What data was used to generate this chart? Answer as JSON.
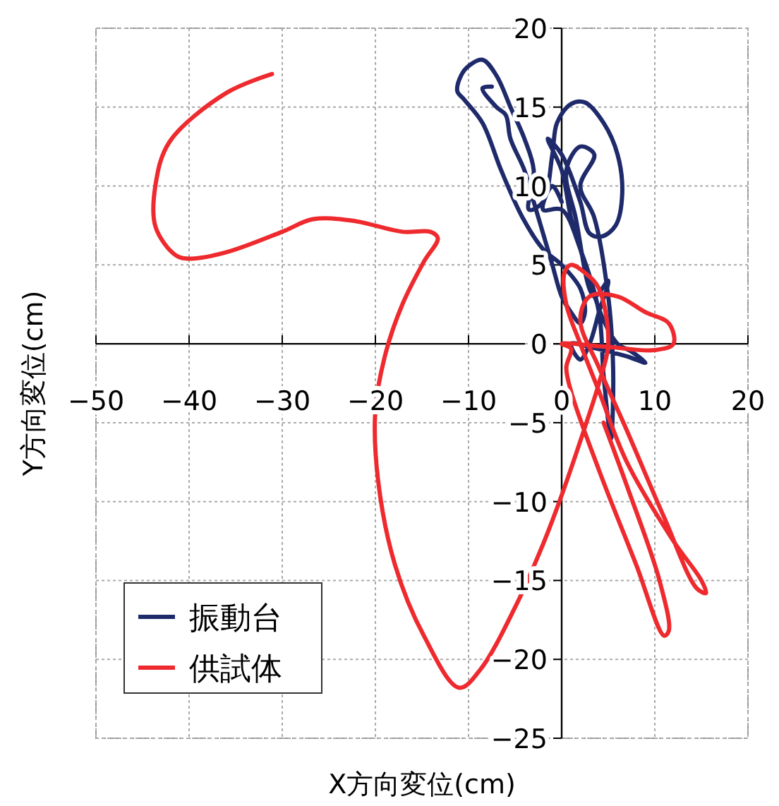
{
  "chart_data": {
    "type": "line",
    "xlabel": "X方向変位(cm)",
    "ylabel": "Y方向変位(cm)",
    "xlim": [
      -50,
      20
    ],
    "xticks": [
      -50,
      -40,
      -30,
      -20,
      -10,
      0,
      10,
      20
    ],
    "ylim": [
      -25,
      20
    ],
    "yticks": [
      -25,
      -20,
      -15,
      -10,
      -5,
      0,
      5,
      10,
      15,
      20
    ],
    "grid": true,
    "legend": "bottom left",
    "marker": "none",
    "line_style": "solid",
    "series": [
      {
        "name": "振動台",
        "color": "#1f2a6b",
        "x": [
          -7.5,
          -8.5,
          -7,
          -6,
          -5.5,
          -4,
          -3,
          -2,
          -1,
          0,
          1,
          2,
          2.5,
          2,
          0,
          -2,
          -4.2,
          -6.5,
          -8.5,
          -10.5,
          -11.2,
          -10.8,
          -10,
          -8.5,
          -7,
          -5.5,
          -4,
          -3,
          -3.5,
          -2,
          -1,
          -0.5,
          1,
          2.5,
          4.5,
          6,
          6.5,
          5.8,
          4.3,
          3,
          2,
          0,
          -1.5,
          0,
          1,
          2,
          3,
          4.5,
          6,
          7.5,
          9,
          7,
          3,
          1,
          2,
          3,
          4,
          5,
          3.5,
          1.5,
          0.5,
          2,
          3.5,
          2,
          3.5,
          5,
          5.5,
          5.5,
          5.3,
          4.5,
          4,
          2,
          0,
          -2,
          -1,
          0
        ],
        "values": [
          16.3,
          16.2,
          15,
          14.5,
          13,
          11,
          9,
          7,
          5,
          3,
          2,
          1.3,
          2,
          3.5,
          5,
          6,
          8,
          11,
          14,
          15.5,
          16,
          17,
          17.6,
          18,
          17,
          15,
          13,
          11,
          8.5,
          9,
          12,
          14,
          15.2,
          15.3,
          14,
          12,
          9.5,
          7.5,
          6.8,
          7,
          9,
          12,
          13,
          11,
          8,
          6,
          4,
          1.5,
          0,
          -0.5,
          -1.2,
          -0.8,
          -0.2,
          0,
          -1,
          0,
          2,
          4,
          3,
          8,
          11,
          12.5,
          12,
          10,
          8,
          3,
          -1,
          -4,
          -6,
          -2,
          2,
          6,
          8.5,
          8.5,
          10,
          9
        ]
      },
      {
        "name": "供試体",
        "color": "#ee2a2e",
        "x": [
          -31.1,
          -36,
          -42.1,
          -43.6,
          -43.6,
          -41.4,
          -39.8,
          -36,
          -30,
          -26.7,
          -22.4,
          -17.1,
          -14.1,
          -13.3,
          -14.8,
          -17.1,
          -18.9,
          -20,
          -19.7,
          -17.9,
          -14.8,
          -11,
          -8.8,
          -5,
          -2,
          0,
          2.6,
          4,
          5,
          4,
          2.5,
          1,
          0.3,
          0.5,
          2,
          4,
          7,
          12,
          15,
          15.5,
          14.5,
          11,
          7,
          4,
          2,
          3,
          6,
          9,
          11.5,
          12,
          10,
          5,
          0,
          1,
          0.5,
          1,
          4,
          8,
          11,
          11.5,
          10.5,
          7,
          4.5
        ],
        "values": [
          17.1,
          15.9,
          12.8,
          10.1,
          7.4,
          5.6,
          5.4,
          5.8,
          7.1,
          7.9,
          7.8,
          7.1,
          7.1,
          6.7,
          5.2,
          2.5,
          -0.6,
          -4.2,
          -8.7,
          -14,
          -18.5,
          -21.8,
          -20.7,
          -16.7,
          -12.7,
          -9.6,
          -5.1,
          -2.5,
          0,
          3.5,
          4.5,
          5,
          4.5,
          2.5,
          0,
          -3,
          -7.5,
          -12.5,
          -15,
          -15.8,
          -15.5,
          -11,
          -5.5,
          -1.5,
          1.5,
          3,
          3,
          2,
          1.3,
          0,
          -0.4,
          -0.2,
          0,
          -0.3,
          -1.5,
          -3,
          -8,
          -14,
          -18.5,
          -18.2,
          -15,
          -9,
          -5
        ]
      }
    ]
  }
}
